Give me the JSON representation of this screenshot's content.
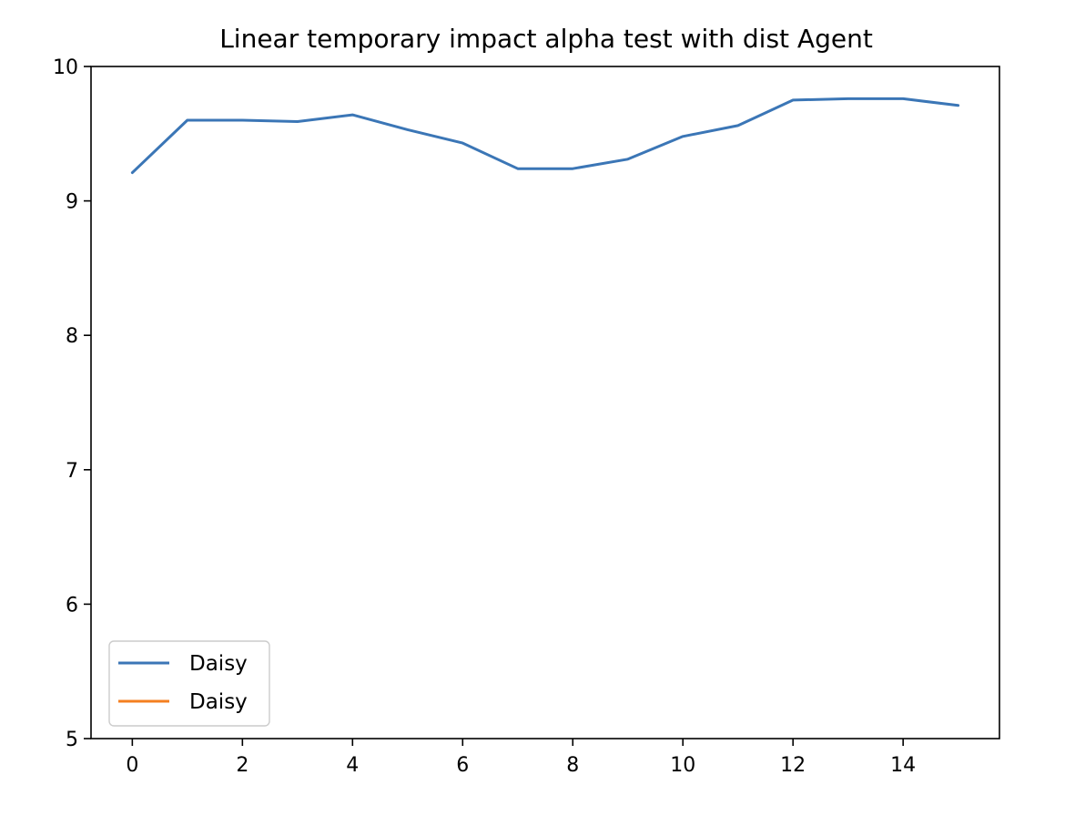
{
  "chart_data": {
    "type": "line",
    "title": "Linear temporary impact alpha test with dist Agent",
    "xlabel": "",
    "ylabel": "",
    "xlim": [
      -0.75,
      15.75
    ],
    "ylim": [
      5,
      10
    ],
    "xticks": [
      0,
      2,
      4,
      6,
      8,
      10,
      12,
      14
    ],
    "xtick_labels": [
      "0",
      "2",
      "4",
      "6",
      "8",
      "10",
      "12",
      "14"
    ],
    "yticks": [
      5,
      6,
      7,
      8,
      9,
      10
    ],
    "ytick_labels": [
      "5",
      "6",
      "7",
      "8",
      "9",
      "10"
    ],
    "grid": false,
    "legend_position": "lower left",
    "series": [
      {
        "name": "Daisy",
        "color": "#3b76b6",
        "x": [
          0,
          1,
          2,
          3,
          4,
          5,
          6,
          7,
          8,
          9,
          10,
          11,
          12,
          13,
          14,
          15
        ],
        "y": [
          9.21,
          9.6,
          9.6,
          9.59,
          9.64,
          9.53,
          9.43,
          9.24,
          9.24,
          9.31,
          9.48,
          9.56,
          9.75,
          9.76,
          9.76,
          9.71
        ]
      },
      {
        "name": "Daisy",
        "color": "#f47f20",
        "x": [],
        "y": []
      }
    ]
  }
}
